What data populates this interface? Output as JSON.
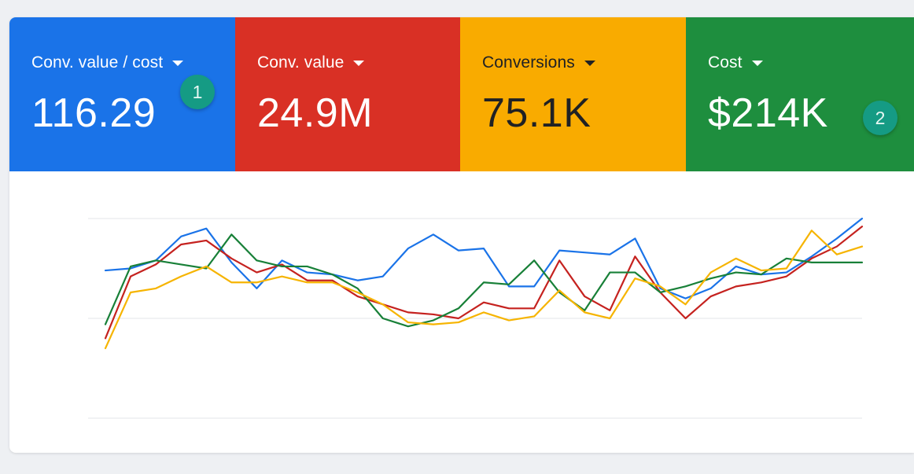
{
  "metrics": [
    {
      "id": "conv-value-cost",
      "label": "Conv. value / cost",
      "value": "116.29",
      "bg": "#1a73e8",
      "fg": "#ffffff"
    },
    {
      "id": "conv-value",
      "label": "Conv. value",
      "value": "24.9M",
      "bg": "#d93025",
      "fg": "#ffffff"
    },
    {
      "id": "conversions",
      "label": "Conversions",
      "value": "75.1K",
      "bg": "#f9ab00",
      "fg": "#202124"
    },
    {
      "id": "cost",
      "label": "Cost",
      "value": "$214K",
      "bg": "#1e8e3e",
      "fg": "#ffffff"
    }
  ],
  "badges": [
    "1",
    "2"
  ],
  "chart_data": {
    "type": "line",
    "x": [
      1,
      2,
      3,
      4,
      5,
      6,
      7,
      8,
      9,
      10,
      11,
      12,
      13,
      14,
      15,
      16,
      17,
      18,
      19,
      20,
      21,
      22,
      23,
      24,
      25,
      26,
      27,
      28,
      29,
      30,
      31
    ],
    "ylim": [
      0,
      100
    ],
    "grid": true,
    "series": [
      {
        "color": "#1a73e8",
        "values": [
          74,
          75,
          79,
          91,
          95,
          78,
          65,
          79,
          73,
          72,
          69,
          71,
          85,
          92,
          84,
          85,
          66,
          66,
          84,
          83,
          82,
          90,
          65,
          60,
          65,
          76,
          72,
          73,
          81,
          90,
          100
        ]
      },
      {
        "color": "#c5221f",
        "values": [
          40,
          71,
          77,
          87,
          89,
          80,
          73,
          77,
          69,
          69,
          61,
          57,
          53,
          52,
          50,
          58,
          55,
          55,
          79,
          61,
          54,
          81,
          63,
          50,
          61,
          66,
          68,
          71,
          80,
          86,
          96
        ]
      },
      {
        "color": "#188038",
        "values": [
          47,
          76,
          79,
          77,
          75,
          92,
          79,
          76,
          76,
          72,
          65,
          50,
          46,
          49,
          55,
          68,
          67,
          79,
          63,
          54,
          73,
          73,
          63,
          66,
          70,
          73,
          72,
          80,
          78,
          78,
          78
        ]
      },
      {
        "color": "#f6b400",
        "values": [
          35,
          63,
          65,
          71,
          76,
          68,
          68,
          71,
          68,
          68,
          63,
          57,
          48,
          47,
          48,
          53,
          49,
          51,
          64,
          53,
          50,
          70,
          66,
          57,
          73,
          80,
          74,
          75,
          94,
          82,
          86
        ]
      }
    ]
  }
}
